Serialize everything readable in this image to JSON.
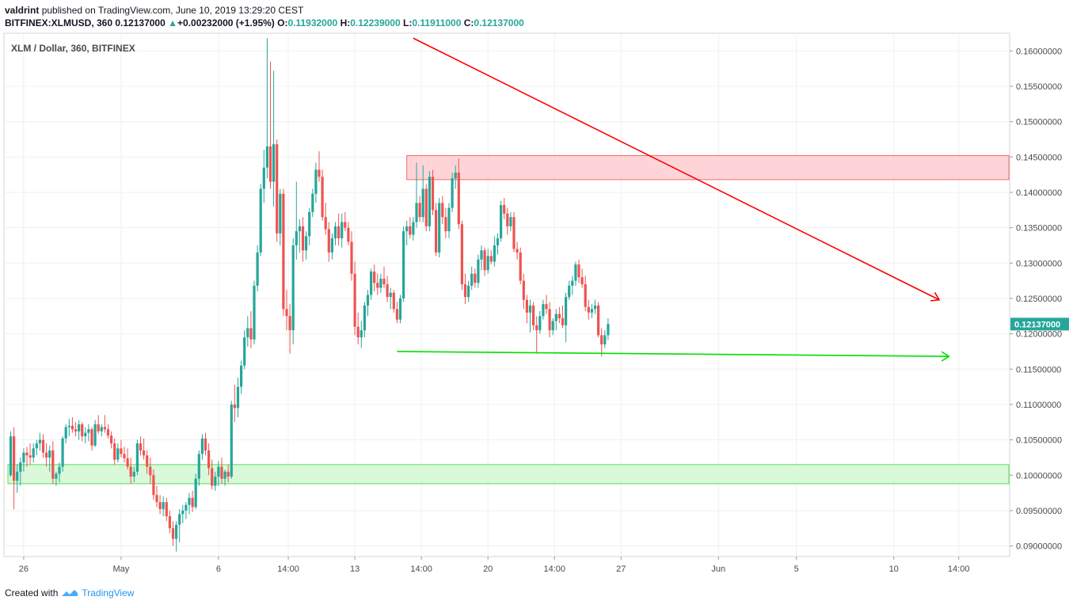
{
  "header": {
    "author": "valdrint",
    "published_text": "published on TradingView.com, June 10, 2019 13:29:20 CEST",
    "symbol": "BITFINEX:XLMUSD, 360",
    "last": "0.12137000",
    "change": "+0.00232000 (+1.95%)",
    "o_label": "O:",
    "o_value": "0.11932000",
    "h_label": "H:",
    "h_value": "0.12239000",
    "l_label": "L:",
    "l_value": "0.11911000",
    "c_label": "C:",
    "c_value": "0.12137000"
  },
  "footer": {
    "created_with": "Created with",
    "brand": "TradingView"
  },
  "colors": {
    "up": "#26a69a",
    "down": "#ef5350",
    "trend": "#ff0000",
    "support": "#00e000",
    "resistance_zone": "#ffcdd2",
    "support_zone": "#d4f7d4"
  },
  "chart_data": {
    "type": "candlestick",
    "title": "XLM / Dollar, 360, BITFINEX",
    "ylim": [
      0.0885,
      0.1625
    ],
    "y_ticks": [
      "0.16000000",
      "0.15500000",
      "0.15000000",
      "0.14500000",
      "0.14000000",
      "0.13500000",
      "0.13000000",
      "0.12500000",
      "0.12000000",
      "0.11500000",
      "0.11000000",
      "0.10500000",
      "0.10000000",
      "0.09500000",
      "0.09000000"
    ],
    "x_ticks": [
      "26",
      "May",
      "6",
      "14:00",
      "13",
      "14:00",
      "20",
      "14:00",
      "27",
      "Jun",
      "5",
      "10",
      "14:00"
    ],
    "last_price_label": "0.12137000",
    "zones": [
      {
        "name": "resistance",
        "from_candle": 122,
        "to_candle": 298,
        "low": 0.1418,
        "high": 0.1452
      },
      {
        "name": "support",
        "from_candle": 0,
        "to_candle": 298,
        "low": 0.0988,
        "high": 0.1015
      }
    ],
    "lines": [
      {
        "name": "descending-trendline",
        "x1": 124,
        "y1": 0.1618,
        "x2": 286,
        "y2": 0.1248
      },
      {
        "name": "horizontal-support",
        "x1": 119,
        "y1": 0.1175,
        "x2": 289,
        "y2": 0.1168
      }
    ],
    "candles": [
      [
        0.1,
        0.1062,
        0.0998,
        0.1055
      ],
      [
        0.1055,
        0.1068,
        0.0952,
        0.0992
      ],
      [
        0.0992,
        0.1015,
        0.0975,
        0.1005
      ],
      [
        0.1005,
        0.1025,
        0.0985,
        0.1018
      ],
      [
        0.1018,
        0.1038,
        0.1005,
        0.1032
      ],
      [
        0.1032,
        0.104,
        0.1012,
        0.1028
      ],
      [
        0.1028,
        0.1045,
        0.1015,
        0.1025
      ],
      [
        0.1025,
        0.1045,
        0.1018,
        0.1038
      ],
      [
        0.1038,
        0.105,
        0.1028,
        0.1045
      ],
      [
        0.1045,
        0.106,
        0.1035,
        0.105
      ],
      [
        0.105,
        0.1058,
        0.1025,
        0.1032
      ],
      [
        0.1032,
        0.1045,
        0.1012,
        0.1025
      ],
      [
        0.1025,
        0.1042,
        0.1005,
        0.1035
      ],
      [
        0.1035,
        0.1048,
        0.0988,
        0.0995
      ],
      [
        0.0995,
        0.1005,
        0.0985,
        0.1002
      ],
      [
        0.1002,
        0.1018,
        0.099,
        0.1012
      ],
      [
        0.1012,
        0.1055,
        0.1005,
        0.1052
      ],
      [
        0.1052,
        0.1072,
        0.1045,
        0.1068
      ],
      [
        0.1068,
        0.108,
        0.1055,
        0.107
      ],
      [
        0.107,
        0.1082,
        0.106,
        0.1065
      ],
      [
        0.1065,
        0.1075,
        0.1055,
        0.1062
      ],
      [
        0.1062,
        0.1078,
        0.105,
        0.1072
      ],
      [
        0.1072,
        0.1075,
        0.1048,
        0.1055
      ],
      [
        0.1055,
        0.1068,
        0.1045,
        0.106
      ],
      [
        0.106,
        0.1072,
        0.1048,
        0.1065
      ],
      [
        0.1065,
        0.1068,
        0.1035,
        0.1042
      ],
      [
        0.1042,
        0.1078,
        0.104,
        0.1072
      ],
      [
        0.1072,
        0.1085,
        0.1058,
        0.1062
      ],
      [
        0.1062,
        0.1072,
        0.1055,
        0.1068
      ],
      [
        0.1068,
        0.1085,
        0.106,
        0.1065
      ],
      [
        0.1065,
        0.1072,
        0.1052,
        0.1056
      ],
      [
        0.1056,
        0.1062,
        0.1038,
        0.1045
      ],
      [
        0.1045,
        0.1052,
        0.1015,
        0.1022
      ],
      [
        0.1022,
        0.1045,
        0.1018,
        0.1038
      ],
      [
        0.1038,
        0.105,
        0.1025,
        0.103
      ],
      [
        0.103,
        0.104,
        0.1018,
        0.1024
      ],
      [
        0.1024,
        0.1038,
        0.1008,
        0.1012
      ],
      [
        0.1012,
        0.1025,
        0.0988,
        0.0998
      ],
      [
        0.0998,
        0.1012,
        0.099,
        0.1005
      ],
      [
        0.1005,
        0.105,
        0.1,
        0.1045
      ],
      [
        0.1045,
        0.1055,
        0.1028,
        0.1035
      ],
      [
        0.1035,
        0.1052,
        0.1022,
        0.1028
      ],
      [
        0.1028,
        0.1035,
        0.1002,
        0.1012
      ],
      [
        0.1012,
        0.1025,
        0.0988,
        0.1
      ],
      [
        0.1,
        0.1008,
        0.0965,
        0.0972
      ],
      [
        0.0972,
        0.0985,
        0.0955,
        0.0962
      ],
      [
        0.0962,
        0.0972,
        0.0945,
        0.0952
      ],
      [
        0.0952,
        0.097,
        0.0942,
        0.0962
      ],
      [
        0.0962,
        0.0968,
        0.0935,
        0.0942
      ],
      [
        0.0942,
        0.095,
        0.0918,
        0.0925
      ],
      [
        0.0925,
        0.0935,
        0.09,
        0.091
      ],
      [
        0.091,
        0.0935,
        0.0892,
        0.093
      ],
      [
        0.093,
        0.0952,
        0.0905,
        0.0945
      ],
      [
        0.0945,
        0.0958,
        0.0932,
        0.095
      ],
      [
        0.095,
        0.0962,
        0.0938,
        0.0958
      ],
      [
        0.0958,
        0.0975,
        0.0945,
        0.0968
      ],
      [
        0.0968,
        0.0978,
        0.0948,
        0.0955
      ],
      [
        0.0955,
        0.1002,
        0.0952,
        0.0995
      ],
      [
        0.0995,
        0.1035,
        0.0985,
        0.103
      ],
      [
        0.103,
        0.1058,
        0.1022,
        0.1052
      ],
      [
        0.1052,
        0.106,
        0.1028,
        0.1035
      ],
      [
        0.1035,
        0.1045,
        0.1,
        0.101
      ],
      [
        0.101,
        0.1022,
        0.098,
        0.0985
      ],
      [
        0.0985,
        0.1005,
        0.0978,
        0.0998
      ],
      [
        0.0998,
        0.102,
        0.0985,
        0.1012
      ],
      [
        0.1012,
        0.1025,
        0.0988,
        0.0995
      ],
      [
        0.0995,
        0.1008,
        0.0985,
        0.1005
      ],
      [
        0.1005,
        0.1015,
        0.099,
        0.0998
      ],
      [
        0.0998,
        0.1105,
        0.0995,
        0.11
      ],
      [
        0.11,
        0.1128,
        0.1075,
        0.1095
      ],
      [
        0.1095,
        0.1138,
        0.1082,
        0.1125
      ],
      [
        0.1125,
        0.1162,
        0.1115,
        0.1155
      ],
      [
        0.1155,
        0.1205,
        0.115,
        0.1195
      ],
      [
        0.1195,
        0.1225,
        0.1182,
        0.1208
      ],
      [
        0.1208,
        0.1232,
        0.118,
        0.1192
      ],
      [
        0.1192,
        0.1275,
        0.1185,
        0.1268
      ],
      [
        0.1268,
        0.1325,
        0.126,
        0.1315
      ],
      [
        0.1315,
        0.1412,
        0.131,
        0.1405
      ],
      [
        0.1405,
        0.146,
        0.1385,
        0.1435
      ],
      [
        0.1435,
        0.1618,
        0.142,
        0.1465
      ],
      [
        0.1465,
        0.1585,
        0.1405,
        0.1415
      ],
      [
        0.1415,
        0.1572,
        0.138,
        0.1468
      ],
      [
        0.1468,
        0.1475,
        0.133,
        0.1342
      ],
      [
        0.1342,
        0.1405,
        0.1325,
        0.1398
      ],
      [
        0.1398,
        0.1405,
        0.1225,
        0.1235
      ],
      [
        0.1235,
        0.1262,
        0.1205,
        0.1225
      ],
      [
        0.1225,
        0.1242,
        0.1172,
        0.1205
      ],
      [
        0.1205,
        0.1335,
        0.1185,
        0.1325
      ],
      [
        0.1325,
        0.1415,
        0.1305,
        0.1345
      ],
      [
        0.1345,
        0.1362,
        0.1315,
        0.1352
      ],
      [
        0.1352,
        0.1365,
        0.1302,
        0.1318
      ],
      [
        0.1318,
        0.1345,
        0.1305,
        0.1338
      ],
      [
        0.1338,
        0.1378,
        0.1325,
        0.1372
      ],
      [
        0.1372,
        0.1405,
        0.1365,
        0.1398
      ],
      [
        0.1398,
        0.1442,
        0.1385,
        0.1432
      ],
      [
        0.1432,
        0.1458,
        0.1415,
        0.1422
      ],
      [
        0.1422,
        0.1432,
        0.136,
        0.1365
      ],
      [
        0.1365,
        0.1385,
        0.134,
        0.1348
      ],
      [
        0.1348,
        0.1358,
        0.1302,
        0.1315
      ],
      [
        0.1315,
        0.1342,
        0.1305,
        0.1335
      ],
      [
        0.1335,
        0.1358,
        0.1325,
        0.1352
      ],
      [
        0.1352,
        0.137,
        0.1325,
        0.1335
      ],
      [
        0.1335,
        0.137,
        0.1322,
        0.1358
      ],
      [
        0.1358,
        0.1372,
        0.1345,
        0.135
      ],
      [
        0.135,
        0.1358,
        0.1325,
        0.133
      ],
      [
        0.133,
        0.1345,
        0.1275,
        0.1285
      ],
      [
        0.1285,
        0.1302,
        0.1198,
        0.121
      ],
      [
        0.121,
        0.123,
        0.1185,
        0.1195
      ],
      [
        0.1195,
        0.1218,
        0.118,
        0.1205
      ],
      [
        0.1205,
        0.1245,
        0.1195,
        0.124
      ],
      [
        0.124,
        0.1262,
        0.1225,
        0.1255
      ],
      [
        0.1255,
        0.1292,
        0.1248,
        0.1288
      ],
      [
        0.1288,
        0.1298,
        0.126,
        0.1272
      ],
      [
        0.1272,
        0.1285,
        0.1255,
        0.1265
      ],
      [
        0.1265,
        0.1285,
        0.1258,
        0.1278
      ],
      [
        0.1278,
        0.1295,
        0.1265,
        0.127
      ],
      [
        0.127,
        0.1282,
        0.1245,
        0.1252
      ],
      [
        0.1252,
        0.1265,
        0.1235,
        0.1258
      ],
      [
        0.1258,
        0.1262,
        0.123,
        0.1235
      ],
      [
        0.1235,
        0.1245,
        0.1215,
        0.122
      ],
      [
        0.122,
        0.1255,
        0.1215,
        0.125
      ],
      [
        0.125,
        0.1352,
        0.1245,
        0.1345
      ],
      [
        0.1345,
        0.136,
        0.1325,
        0.1352
      ],
      [
        0.1352,
        0.1365,
        0.1335,
        0.134
      ],
      [
        0.134,
        0.1365,
        0.1332,
        0.1358
      ],
      [
        0.1358,
        0.1442,
        0.135,
        0.1385
      ],
      [
        0.1385,
        0.1395,
        0.1358,
        0.1365
      ],
      [
        0.1365,
        0.1438,
        0.1358,
        0.1405
      ],
      [
        0.1405,
        0.1412,
        0.1345,
        0.1352
      ],
      [
        0.1352,
        0.143,
        0.1345,
        0.1422
      ],
      [
        0.1422,
        0.1432,
        0.1368,
        0.1375
      ],
      [
        0.1375,
        0.1385,
        0.131,
        0.1315
      ],
      [
        0.1315,
        0.1392,
        0.1308,
        0.1385
      ],
      [
        0.1385,
        0.1395,
        0.1355,
        0.1365
      ],
      [
        0.1365,
        0.1378,
        0.1335,
        0.1345
      ],
      [
        0.1345,
        0.1385,
        0.1335,
        0.1378
      ],
      [
        0.1378,
        0.1428,
        0.1372,
        0.142
      ],
      [
        0.142,
        0.1438,
        0.1405,
        0.1428
      ],
      [
        0.1428,
        0.1448,
        0.1348,
        0.1355
      ],
      [
        0.1355,
        0.136,
        0.1262,
        0.127
      ],
      [
        0.127,
        0.1285,
        0.1242,
        0.1252
      ],
      [
        0.1252,
        0.1275,
        0.1245,
        0.1268
      ],
      [
        0.1268,
        0.1295,
        0.1262,
        0.1285
      ],
      [
        0.1285,
        0.1292,
        0.1265,
        0.1272
      ],
      [
        0.1272,
        0.1312,
        0.1265,
        0.1305
      ],
      [
        0.1305,
        0.1325,
        0.129,
        0.1318
      ],
      [
        0.1318,
        0.1322,
        0.1282,
        0.129
      ],
      [
        0.129,
        0.132,
        0.1285,
        0.131
      ],
      [
        0.131,
        0.1318,
        0.1298,
        0.1302
      ],
      [
        0.1302,
        0.1338,
        0.1295,
        0.1325
      ],
      [
        0.1325,
        0.1342,
        0.1312,
        0.1335
      ],
      [
        0.1335,
        0.1388,
        0.133,
        0.1382
      ],
      [
        0.1382,
        0.1392,
        0.1362,
        0.137
      ],
      [
        0.137,
        0.1378,
        0.134,
        0.1352
      ],
      [
        0.1352,
        0.1372,
        0.1345,
        0.1365
      ],
      [
        0.1365,
        0.1372,
        0.1315,
        0.132
      ],
      [
        0.132,
        0.133,
        0.1305,
        0.1315
      ],
      [
        0.1315,
        0.1322,
        0.127,
        0.1275
      ],
      [
        0.1275,
        0.1285,
        0.1235,
        0.1248
      ],
      [
        0.1248,
        0.1255,
        0.1215,
        0.123
      ],
      [
        0.123,
        0.1248,
        0.1202,
        0.124
      ],
      [
        0.124,
        0.1245,
        0.1205,
        0.1212
      ],
      [
        0.1212,
        0.1225,
        0.1172,
        0.1205
      ],
      [
        0.1205,
        0.1232,
        0.12,
        0.1225
      ],
      [
        0.1225,
        0.1248,
        0.122,
        0.1242
      ],
      [
        0.1242,
        0.1255,
        0.1228,
        0.1235
      ],
      [
        0.1235,
        0.1245,
        0.1195,
        0.1205
      ],
      [
        0.1205,
        0.1222,
        0.1198,
        0.1218
      ],
      [
        0.1218,
        0.1235,
        0.1205,
        0.1228
      ],
      [
        0.1228,
        0.1238,
        0.1215,
        0.1222
      ],
      [
        0.1222,
        0.124,
        0.1208,
        0.1212
      ],
      [
        0.1212,
        0.1258,
        0.1188,
        0.1252
      ],
      [
        0.1252,
        0.1275,
        0.1248,
        0.1268
      ],
      [
        0.1268,
        0.1282,
        0.1255,
        0.1275
      ],
      [
        0.1275,
        0.1302,
        0.1268,
        0.1298
      ],
      [
        0.1298,
        0.1305,
        0.1272,
        0.128
      ],
      [
        0.128,
        0.1292,
        0.1265,
        0.127
      ],
      [
        0.127,
        0.1282,
        0.1232,
        0.1238
      ],
      [
        0.1238,
        0.1248,
        0.122,
        0.123
      ],
      [
        0.123,
        0.1242,
        0.1222,
        0.1235
      ],
      [
        0.1235,
        0.1248,
        0.1228,
        0.124
      ],
      [
        0.124,
        0.1245,
        0.1195,
        0.1198
      ],
      [
        0.1198,
        0.1208,
        0.1168,
        0.1185
      ],
      [
        0.1185,
        0.1205,
        0.118,
        0.1198
      ],
      [
        0.1198,
        0.1222,
        0.1191,
        0.1214
      ]
    ]
  }
}
